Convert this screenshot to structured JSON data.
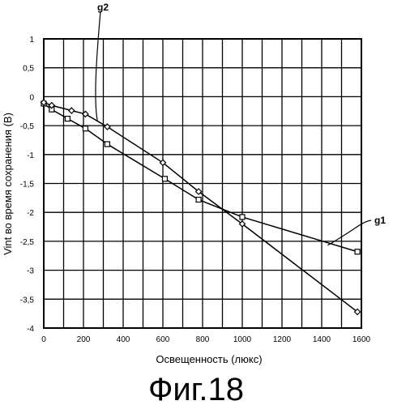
{
  "chart_data": {
    "type": "line",
    "title": "",
    "xlabel": "Освещенность (люкс)",
    "ylabel": "Vint во время сохранения (В)",
    "xlim": [
      0,
      1600
    ],
    "ylim": [
      -4,
      1
    ],
    "xticks": [
      0,
      200,
      400,
      600,
      800,
      1000,
      1200,
      1400,
      1600
    ],
    "yticks": [
      1,
      0.5,
      0,
      -0.5,
      -1,
      -1.5,
      -2,
      -2.5,
      -3,
      -3.5,
      -4
    ],
    "ytick_labels": [
      "1",
      "0,5",
      "0",
      "-0,5",
      "-1",
      "-1,5",
      "-2",
      "-2,5",
      "-3",
      "-3,5",
      "-4"
    ],
    "grid": true,
    "series": [
      {
        "name": "g1",
        "marker": "square",
        "x": [
          0,
          40,
          120,
          210,
          320,
          610,
          780,
          1000,
          1580
        ],
        "y": [
          -0.12,
          -0.22,
          -0.38,
          -0.55,
          -0.82,
          -1.42,
          -1.78,
          -2.08,
          -2.68
        ]
      },
      {
        "name": "g2",
        "marker": "diamond",
        "x": [
          0,
          40,
          140,
          210,
          320,
          600,
          780,
          1000,
          1580
        ],
        "y": [
          -0.1,
          -0.15,
          -0.24,
          -0.3,
          -0.52,
          -1.14,
          -1.64,
          -2.2,
          -3.72
        ]
      }
    ]
  },
  "caption": "Фиг.18"
}
